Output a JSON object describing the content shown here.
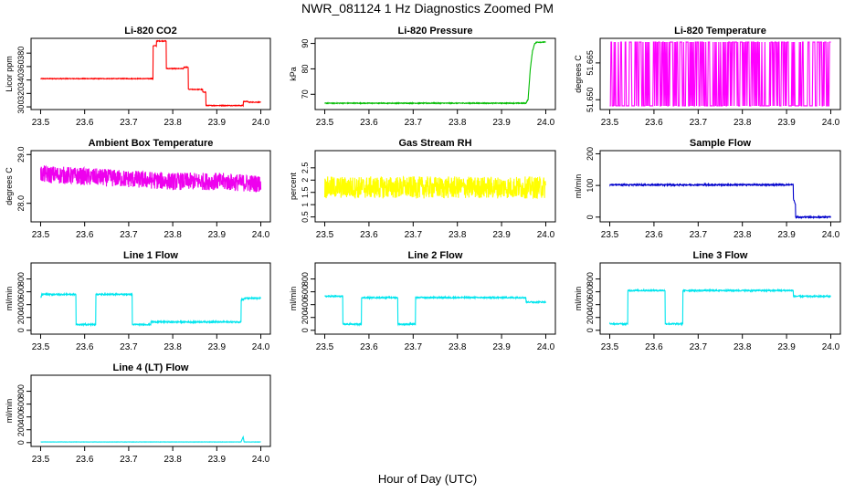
{
  "page": {
    "title": "NWR_081124  1 Hz Diagnostics Zoomed PM",
    "xlabel": "Hour of Day (UTC)"
  },
  "chart_data": [
    {
      "type": "line",
      "title": "Li-820 CO2",
      "ylabel": "Licor ppm",
      "color": "#ff0000",
      "xlim": [
        23.5,
        24.0
      ],
      "ylim": [
        296,
        402
      ],
      "xticks": [
        23.5,
        23.6,
        23.7,
        23.8,
        23.9,
        24.0
      ],
      "xtick_labels": [
        "23.5",
        "23.6",
        "23.7",
        "23.8",
        "23.9",
        "24.0"
      ],
      "yticks": [
        300,
        320,
        340,
        360,
        380
      ],
      "ytick_labels": [
        "300",
        "320",
        "340",
        "360",
        "380"
      ],
      "noise": 0.5,
      "x": [
        23.5,
        23.755,
        23.755,
        23.763,
        23.763,
        23.785,
        23.785,
        23.825,
        23.825,
        23.835,
        23.835,
        23.868,
        23.868,
        23.875,
        23.875,
        23.96,
        23.96,
        23.97,
        23.97,
        24.0
      ],
      "y": [
        342,
        342,
        391,
        391,
        398,
        398,
        357,
        357,
        359,
        359,
        326,
        326,
        322,
        322,
        302,
        302,
        308,
        308,
        307,
        307
      ]
    },
    {
      "type": "line",
      "title": "Li-820 Pressure",
      "ylabel": "kPa",
      "color": "#00bb00",
      "xlim": [
        23.5,
        24.0
      ],
      "ylim": [
        64,
        92
      ],
      "xticks": [
        23.5,
        23.6,
        23.7,
        23.8,
        23.9,
        24.0
      ],
      "xtick_labels": [
        "23.5",
        "23.6",
        "23.7",
        "23.8",
        "23.9",
        "24.0"
      ],
      "yticks": [
        70,
        80,
        90
      ],
      "ytick_labels": [
        "70",
        "80",
        "90"
      ],
      "noise": 0.15,
      "x": [
        23.5,
        23.955,
        23.96,
        23.965,
        23.97,
        23.975,
        23.98,
        24.0
      ],
      "y": [
        66.5,
        66.5,
        68,
        80,
        87,
        90,
        90.5,
        90.5
      ]
    },
    {
      "type": "line",
      "title": "Li-820 Temperature",
      "ylabel": "degrees C",
      "color": "#ff00ff",
      "xlim": [
        23.5,
        24.0
      ],
      "ylim": [
        51.646,
        51.675
      ],
      "xticks": [
        23.5,
        23.6,
        23.7,
        23.8,
        23.9,
        24.0
      ],
      "xtick_labels": [
        "23.5",
        "23.6",
        "23.7",
        "23.8",
        "23.9",
        "24.0"
      ],
      "yticks": [
        51.65,
        51.665
      ],
      "ytick_labels": [
        "51.650",
        "51.665"
      ],
      "noise_mode": "binary",
      "x": [
        23.5,
        24.0
      ],
      "y": [
        51.6475,
        51.6735
      ]
    },
    {
      "type": "line",
      "title": "Ambient Box Temperature",
      "ylabel": "degrees C",
      "color": "#ee00ee",
      "xlim": [
        23.5,
        24.0
      ],
      "ylim": [
        27.62,
        29.08
      ],
      "xticks": [
        23.5,
        23.6,
        23.7,
        23.8,
        23.9,
        24.0
      ],
      "xtick_labels": [
        "23.5",
        "23.6",
        "23.7",
        "23.8",
        "23.9",
        "24.0"
      ],
      "yticks": [
        28.0,
        29.0
      ],
      "ytick_labels": [
        "28.0",
        "29.0"
      ],
      "noise": 0.18,
      "x": [
        23.5,
        23.6,
        23.7,
        23.8,
        23.9,
        24.0
      ],
      "y": [
        28.6,
        28.55,
        28.5,
        28.45,
        28.45,
        28.4
      ]
    },
    {
      "type": "line",
      "title": "Gas Stream RH",
      "ylabel": "percent",
      "color": "#ffff00",
      "xlim": [
        23.5,
        24.0
      ],
      "ylim": [
        0.3,
        3.2
      ],
      "xticks": [
        23.5,
        23.6,
        23.7,
        23.8,
        23.9,
        24.0
      ],
      "xtick_labels": [
        "23.5",
        "23.6",
        "23.7",
        "23.8",
        "23.9",
        "24.0"
      ],
      "yticks": [
        0.5,
        1.0,
        1.5,
        2.0,
        2.5
      ],
      "ytick_labels": [
        "0.5",
        "1",
        "1.5",
        "2",
        "2.5"
      ],
      "noise": 0.45,
      "x": [
        23.5,
        24.0
      ],
      "y": [
        1.7,
        1.7
      ]
    },
    {
      "type": "line",
      "title": "Sample Flow",
      "ylabel": "ml/min",
      "color": "#0000cc",
      "xlim": [
        23.5,
        24.0
      ],
      "ylim": [
        -15,
        210
      ],
      "xticks": [
        23.5,
        23.6,
        23.7,
        23.8,
        23.9,
        24.0
      ],
      "xtick_labels": [
        "23.5",
        "23.6",
        "23.7",
        "23.8",
        "23.9",
        "24.0"
      ],
      "yticks": [
        0,
        100,
        200
      ],
      "ytick_labels": [
        "0",
        "100",
        "200"
      ],
      "noise": 2,
      "x": [
        23.5,
        23.915,
        23.915,
        23.92,
        23.92,
        24.0
      ],
      "y": [
        102,
        102,
        60,
        40,
        0,
        0
      ]
    },
    {
      "type": "line",
      "title": "Line 1 Flow",
      "ylabel": "ml/min",
      "color": "#00e5ee",
      "xlim": [
        23.5,
        24.0
      ],
      "ylim": [
        -60,
        1050
      ],
      "xticks": [
        23.5,
        23.6,
        23.7,
        23.8,
        23.9,
        24.0
      ],
      "xtick_labels": [
        "23.5",
        "23.6",
        "23.7",
        "23.8",
        "23.9",
        "24.0"
      ],
      "yticks": [
        0,
        200,
        400,
        600,
        800
      ],
      "ytick_labels": [
        "0",
        "200",
        "400",
        "600",
        "800"
      ],
      "noise": 10,
      "x": [
        23.5,
        23.5,
        23.502,
        23.502,
        23.58,
        23.58,
        23.625,
        23.625,
        23.708,
        23.708,
        23.75,
        23.75,
        23.955,
        23.955,
        23.962,
        23.962,
        24.0
      ],
      "y": [
        120,
        520,
        520,
        560,
        560,
        90,
        90,
        560,
        560,
        90,
        90,
        130,
        130,
        480,
        480,
        500,
        500
      ]
    },
    {
      "type": "line",
      "title": "Line 2 Flow",
      "ylabel": "ml/min",
      "color": "#00e5ee",
      "xlim": [
        23.5,
        24.0
      ],
      "ylim": [
        -60,
        1050
      ],
      "xticks": [
        23.5,
        23.6,
        23.7,
        23.8,
        23.9,
        24.0
      ],
      "xtick_labels": [
        "23.5",
        "23.6",
        "23.7",
        "23.8",
        "23.9",
        "24.0"
      ],
      "yticks": [
        0,
        200,
        400,
        600,
        800
      ],
      "ytick_labels": [
        "0",
        "200",
        "400",
        "600",
        "800"
      ],
      "noise": 10,
      "x": [
        23.5,
        23.541,
        23.541,
        23.583,
        23.583,
        23.665,
        23.665,
        23.705,
        23.705,
        23.955,
        23.955,
        24.0
      ],
      "y": [
        530,
        530,
        95,
        95,
        510,
        510,
        95,
        95,
        510,
        510,
        440,
        440
      ]
    },
    {
      "type": "line",
      "title": "Line 3 Flow",
      "ylabel": "ml/min",
      "color": "#00e5ee",
      "xlim": [
        23.5,
        24.0
      ],
      "ylim": [
        -60,
        1050
      ],
      "xticks": [
        23.5,
        23.6,
        23.7,
        23.8,
        23.9,
        24.0
      ],
      "xtick_labels": [
        "23.5",
        "23.6",
        "23.7",
        "23.8",
        "23.9",
        "24.0"
      ],
      "yticks": [
        0,
        200,
        400,
        600,
        800
      ],
      "ytick_labels": [
        "0",
        "200",
        "400",
        "600",
        "800"
      ],
      "noise": 10,
      "x": [
        23.5,
        23.5,
        23.502,
        23.502,
        23.541,
        23.541,
        23.625,
        23.625,
        23.665,
        23.665,
        23.915,
        23.915,
        24.0
      ],
      "y": [
        600,
        100,
        100,
        100,
        100,
        620,
        620,
        100,
        100,
        620,
        620,
        530,
        530
      ]
    },
    {
      "type": "line",
      "title": "Line 4 (LT) Flow",
      "ylabel": "ml/min",
      "color": "#00e5ee",
      "xlim": [
        23.5,
        24.0
      ],
      "ylim": [
        -60,
        1050
      ],
      "xticks": [
        23.5,
        23.6,
        23.7,
        23.8,
        23.9,
        24.0
      ],
      "xtick_labels": [
        "23.5",
        "23.6",
        "23.7",
        "23.8",
        "23.9",
        "24.0"
      ],
      "yticks": [
        0,
        200,
        400,
        600,
        800
      ],
      "ytick_labels": [
        "0",
        "200",
        "400",
        "600",
        "800"
      ],
      "noise": 2,
      "x": [
        23.5,
        23.955,
        23.958,
        23.96,
        23.962,
        24.0
      ],
      "y": [
        10,
        10,
        60,
        90,
        10,
        10
      ]
    }
  ]
}
